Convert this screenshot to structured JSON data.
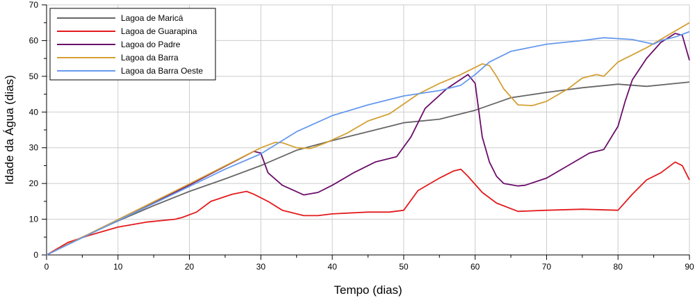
{
  "chart_data": {
    "type": "line",
    "title": "",
    "xlabel": "Tempo (dias)",
    "ylabel": "Idade da Água (dias)",
    "xlim": [
      0,
      90
    ],
    "ylim": [
      0,
      70
    ],
    "xticks": [
      0,
      10,
      20,
      30,
      40,
      50,
      60,
      70,
      80,
      90
    ],
    "yticks": [
      0,
      10,
      20,
      30,
      40,
      50,
      60,
      70
    ],
    "grid": true,
    "legend_position": "top-left",
    "series": [
      {
        "name": "Lagoa de Maricá",
        "color": "#666666",
        "x": [
          0,
          5,
          10,
          15,
          20,
          25,
          30,
          35,
          40,
          45,
          50,
          55,
          60,
          65,
          70,
          75,
          80,
          84,
          90
        ],
        "y": [
          0,
          5,
          9.5,
          13.8,
          17.8,
          21.3,
          25,
          29.3,
          32,
          34.5,
          37,
          38,
          40.5,
          44,
          45.5,
          46.8,
          47.8,
          47.2,
          48.4
        ]
      },
      {
        "name": "Lagoa de Guarapina",
        "color": "#e31a1c",
        "x": [
          0,
          3,
          6,
          10,
          14,
          18,
          19,
          21,
          23,
          26,
          28,
          29,
          31,
          33,
          36,
          38,
          40,
          45,
          48,
          50,
          52,
          55,
          57,
          58,
          59,
          61,
          63,
          66,
          70,
          75,
          80,
          82,
          84,
          86,
          88,
          89,
          90
        ],
        "y": [
          0,
          3.5,
          5.5,
          7.8,
          9.2,
          10,
          10.5,
          12,
          15,
          17,
          17.8,
          17,
          15,
          12.5,
          11,
          11,
          11.5,
          12,
          12,
          12.5,
          18,
          21.5,
          23.5,
          24,
          22,
          17.5,
          14.5,
          12.2,
          12.5,
          12.8,
          12.5,
          17,
          21,
          23,
          26,
          25,
          21
        ]
      },
      {
        "name": "Lagoa do Padre",
        "color": "#6a0d6a",
        "x": [
          0,
          10,
          20,
          29,
          30,
          31,
          33,
          36,
          38,
          40,
          43,
          46,
          49,
          51,
          53,
          56,
          59,
          60,
          61,
          62,
          63,
          64,
          66,
          67,
          70,
          73,
          76,
          78,
          80,
          81,
          82,
          84,
          86,
          88,
          89,
          90
        ],
        "y": [
          0,
          9.8,
          19.6,
          29,
          28.5,
          23,
          19.5,
          16.8,
          17.5,
          19.5,
          23,
          26,
          27.5,
          33,
          41,
          46.5,
          50.5,
          48,
          33,
          26,
          22,
          20,
          19.3,
          19.5,
          21.5,
          25,
          28.5,
          29.5,
          36,
          43,
          49,
          55,
          59.5,
          62,
          61.5,
          54.5
        ]
      },
      {
        "name": "Lagoa da Barra",
        "color": "#d4a035",
        "x": [
          0,
          10,
          20,
          30,
          32,
          33,
          35,
          37,
          39,
          42,
          45,
          48,
          52,
          55,
          58,
          61,
          62,
          63,
          64,
          66,
          68,
          70,
          73,
          75,
          77,
          78,
          80,
          84,
          90
        ],
        "y": [
          0,
          9.9,
          19.9,
          30,
          31.5,
          31.4,
          30,
          29.8,
          31.3,
          34,
          37.5,
          39.5,
          45,
          48,
          50.5,
          53.5,
          53,
          50,
          46.5,
          42,
          41.8,
          43,
          46.5,
          49.5,
          50.5,
          50,
          54,
          58,
          65
        ]
      },
      {
        "name": "Lagoa da Barra Oeste",
        "color": "#6699ee",
        "x": [
          0,
          10,
          20,
          25,
          30,
          35,
          40,
          45,
          50,
          55,
          58,
          60,
          62,
          65,
          70,
          75,
          78,
          82,
          85,
          86,
          88,
          90
        ],
        "y": [
          0,
          9.6,
          19.2,
          24,
          28.3,
          34.5,
          39,
          42,
          44.5,
          46,
          47.5,
          50.5,
          54,
          57,
          59,
          60,
          60.8,
          60.3,
          59,
          60,
          61,
          62.5
        ]
      }
    ]
  }
}
